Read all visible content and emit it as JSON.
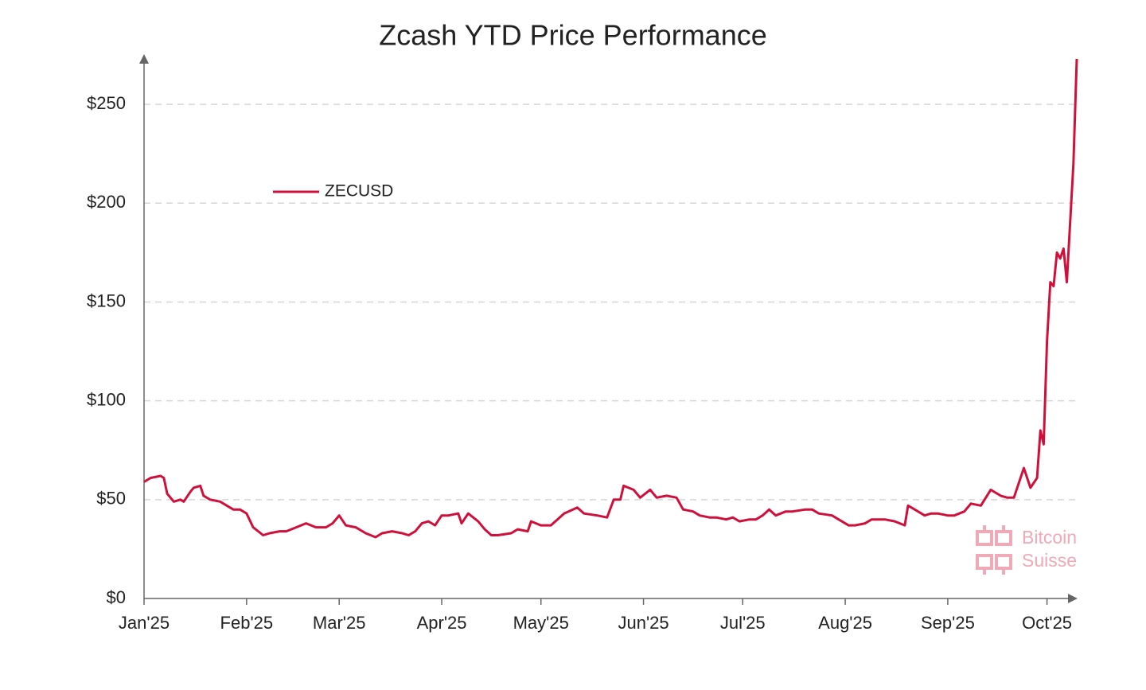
{
  "chart_data": {
    "type": "line",
    "title": "Zcash YTD Price Performance",
    "watermark": [
      "Bitcoin",
      "Suisse"
    ],
    "legend": "upper-left",
    "grid": true,
    "x": [
      0,
      2,
      5,
      6,
      7,
      9,
      11,
      12,
      14,
      15,
      17,
      18,
      20,
      23,
      25,
      27,
      29,
      31,
      33,
      36,
      38,
      41,
      43,
      46,
      49,
      52,
      55,
      57,
      59,
      61,
      64,
      67,
      70,
      72,
      75,
      78,
      80,
      82,
      84,
      86,
      88,
      90,
      92,
      95,
      96,
      98,
      101,
      103,
      105,
      107,
      111,
      113,
      116,
      117,
      120,
      123,
      125,
      127,
      131,
      133,
      137,
      140,
      142,
      144,
      145,
      148,
      150,
      153,
      155,
      158,
      161,
      163,
      166,
      168,
      171,
      173,
      176,
      178,
      180,
      183,
      185,
      187,
      189,
      191,
      194,
      196,
      200,
      202,
      204,
      208,
      210,
      213,
      215,
      218,
      220,
      224,
      227,
      230,
      231,
      233,
      236,
      238,
      240,
      243,
      245,
      248,
      250,
      253,
      256,
      259,
      261,
      263,
      266,
      268,
      270,
      271,
      272,
      273,
      274,
      275,
      276,
      277,
      278,
      279,
      281,
      282
    ],
    "series": [
      {
        "name": "ZECUSD",
        "color": "#d0103a",
        "values": [
          59,
          61,
          62,
          61,
          53,
          49,
          50,
          49,
          54,
          56,
          57,
          52,
          50,
          49,
          47,
          45,
          45,
          43,
          36,
          32,
          33,
          34,
          34,
          36,
          38,
          36,
          36,
          38,
          42,
          37,
          36,
          33,
          31,
          33,
          34,
          33,
          32,
          34,
          38,
          39,
          37,
          42,
          42,
          43,
          38,
          43,
          39,
          35,
          32,
          32,
          33,
          35,
          34,
          39,
          37,
          37,
          40,
          43,
          46,
          43,
          42,
          41,
          50,
          50,
          57,
          55,
          51,
          55,
          51,
          52,
          51,
          45,
          44,
          42,
          41,
          41,
          40,
          41,
          39,
          40,
          40,
          42,
          45,
          42,
          44,
          44,
          45,
          45,
          43,
          42,
          40,
          37,
          37,
          38,
          40,
          40,
          39,
          37,
          47,
          45,
          42,
          43,
          43,
          42,
          42,
          44,
          48,
          47,
          55,
          52,
          51,
          51,
          66,
          56,
          61,
          85,
          78,
          130,
          160,
          158,
          175,
          172,
          177,
          160,
          220,
          273
        ]
      }
    ],
    "xlim": [
      0,
      282
    ],
    "xticks": [
      {
        "value": 0,
        "label": "Jan'25"
      },
      {
        "value": 31,
        "label": "Feb'25"
      },
      {
        "value": 59,
        "label": "Mar'25"
      },
      {
        "value": 90,
        "label": "Apr'25"
      },
      {
        "value": 120,
        "label": "May'25"
      },
      {
        "value": 151,
        "label": "Jun'25"
      },
      {
        "value": 181,
        "label": "Jul'25"
      },
      {
        "value": 212,
        "label": "Aug'25"
      },
      {
        "value": 243,
        "label": "Sep'25"
      },
      {
        "value": 273,
        "label": "Oct'25"
      }
    ],
    "ylim": [
      0,
      275
    ],
    "yticks": [
      {
        "value": 0,
        "label": "$0"
      },
      {
        "value": 50,
        "label": "$50"
      },
      {
        "value": 100,
        "label": "$100"
      },
      {
        "value": 150,
        "label": "$150"
      },
      {
        "value": 200,
        "label": "$200"
      },
      {
        "value": 250,
        "label": "$250"
      }
    ]
  }
}
